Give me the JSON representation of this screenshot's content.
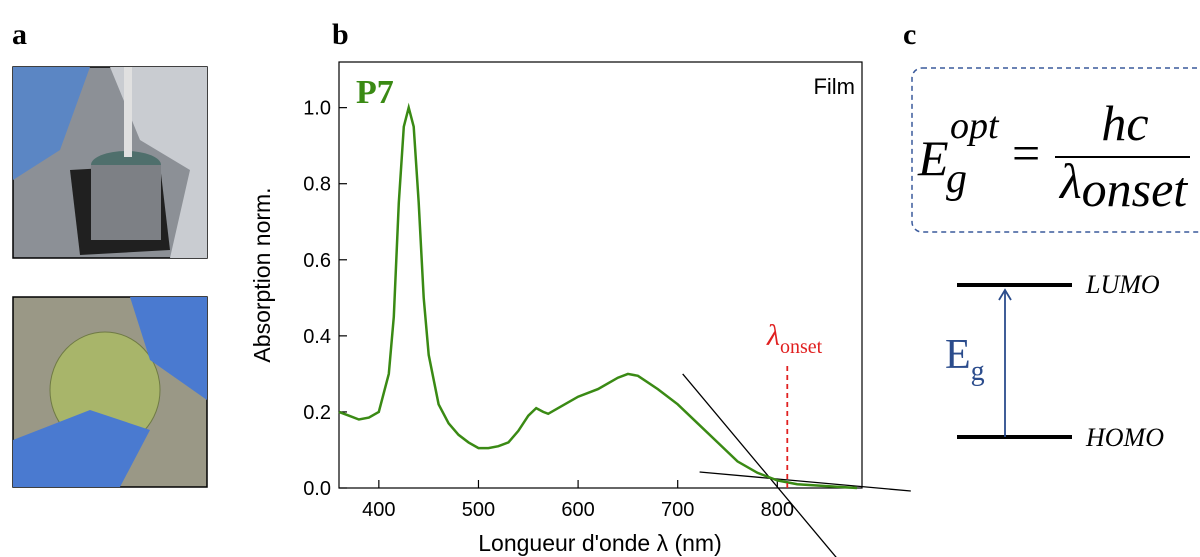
{
  "panels": {
    "a": "a",
    "b": "b",
    "c": "c"
  },
  "chart_data": {
    "type": "line",
    "x_label": "Longueur d'onde λ (nm)",
    "y_label": "Absorption norm.",
    "annotation": "Film",
    "x": [
      360,
      370,
      380,
      390,
      400,
      410,
      415,
      420,
      425,
      430,
      435,
      440,
      445,
      450,
      460,
      470,
      480,
      490,
      500,
      510,
      520,
      530,
      540,
      550,
      558,
      565,
      570,
      580,
      600,
      620,
      640,
      650,
      660,
      680,
      700,
      720,
      740,
      760,
      780,
      800,
      820,
      850,
      880
    ],
    "series": [
      {
        "name": "P7",
        "color": "#3a8a14",
        "values": [
          0.2,
          0.19,
          0.18,
          0.185,
          0.2,
          0.3,
          0.45,
          0.75,
          0.95,
          1.0,
          0.95,
          0.75,
          0.5,
          0.35,
          0.22,
          0.17,
          0.14,
          0.12,
          0.105,
          0.105,
          0.11,
          0.12,
          0.15,
          0.19,
          0.21,
          0.2,
          0.195,
          0.21,
          0.24,
          0.26,
          0.29,
          0.3,
          0.295,
          0.26,
          0.22,
          0.17,
          0.12,
          0.07,
          0.04,
          0.02,
          0.01,
          0.005,
          0.0
        ]
      }
    ],
    "tangent_lines": [
      {
        "x": [
          705,
          860
        ],
        "values": [
          0.3,
          -0.185
        ],
        "color": "#000000"
      },
      {
        "x": [
          722,
          934
        ],
        "values": [
          0.042,
          -0.008
        ],
        "color": "#000000"
      }
    ],
    "onset": {
      "x": 810,
      "values": [
        0,
        0.33
      ],
      "color": "#e02020",
      "symbol": "λ",
      "subscript": "onset"
    },
    "xlim": [
      360,
      885
    ],
    "ylim": [
      0,
      1.12
    ],
    "xticks": [
      400,
      500,
      600,
      700,
      800
    ],
    "yticks": [
      {
        "value": 0,
        "label": "0.0"
      },
      0.2,
      0.4,
      0.6,
      0.8,
      {
        "value": 1,
        "label": "1.0"
      }
    ]
  },
  "formula": {
    "E": "E",
    "sub": "g",
    "sup": "opt",
    "equals": "=",
    "numerator": "hc",
    "lambda": "λ",
    "lambda_sub": "onset"
  },
  "diagram": {
    "lumo": "LUMO",
    "homo": "HOMO",
    "gap": "E",
    "gap_sub": "g"
  }
}
